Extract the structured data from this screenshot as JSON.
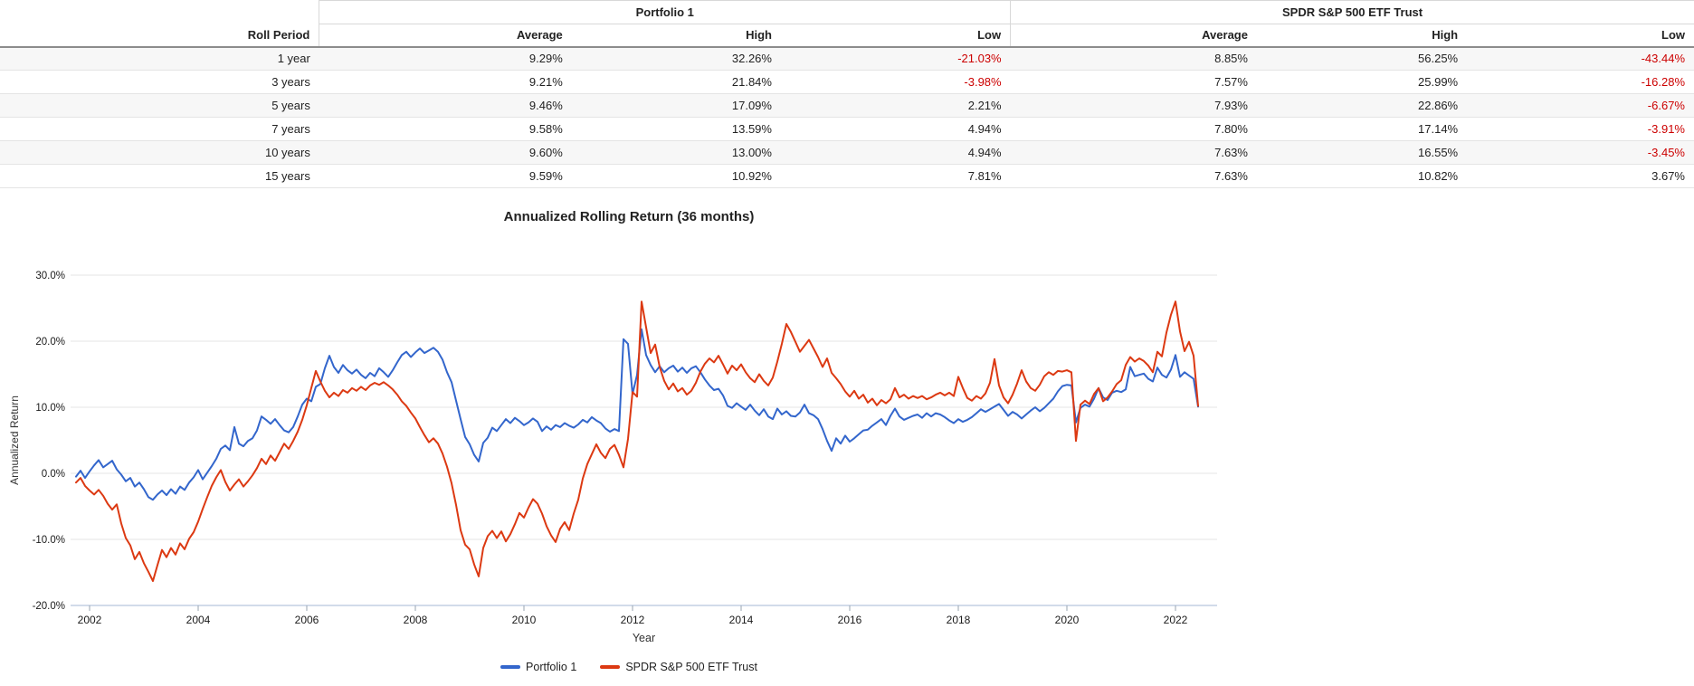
{
  "colors": {
    "portfolio1": "#3366cc",
    "benchmark": "#dc3912",
    "negative": "#cc0000"
  },
  "table": {
    "row_header": "Roll Period",
    "groups": [
      {
        "label": "Portfolio 1"
      },
      {
        "label": "SPDR S&P 500 ETF Trust"
      }
    ],
    "sub_headers": [
      "Average",
      "High",
      "Low",
      "Average",
      "High",
      "Low"
    ],
    "rows": [
      {
        "cells": [
          "1 year",
          "9.29%",
          "32.26%",
          "-21.03%",
          "8.85%",
          "56.25%",
          "-43.44%"
        ]
      },
      {
        "cells": [
          "3 years",
          "9.21%",
          "21.84%",
          "-3.98%",
          "7.57%",
          "25.99%",
          "-16.28%"
        ]
      },
      {
        "cells": [
          "5 years",
          "9.46%",
          "17.09%",
          "2.21%",
          "7.93%",
          "22.86%",
          "-6.67%"
        ]
      },
      {
        "cells": [
          "7 years",
          "9.58%",
          "13.59%",
          "4.94%",
          "7.80%",
          "17.14%",
          "-3.91%"
        ]
      },
      {
        "cells": [
          "10 years",
          "9.60%",
          "13.00%",
          "4.94%",
          "7.63%",
          "16.55%",
          "-3.45%"
        ]
      },
      {
        "cells": [
          "15 years",
          "9.59%",
          "10.92%",
          "7.81%",
          "7.63%",
          "10.82%",
          "3.67%"
        ]
      }
    ]
  },
  "chart_data": {
    "type": "line",
    "title": "Annualized Rolling Return (36 months)",
    "xlabel": "Year",
    "ylabel": "Annualized Return",
    "grid": true,
    "legend_position": "bottom",
    "xlim": [
      2001.7,
      2022.8
    ],
    "ylim": [
      -20,
      30
    ],
    "xticks": [
      2002,
      2004,
      2006,
      2008,
      2010,
      2012,
      2014,
      2016,
      2018,
      2020,
      2022
    ],
    "yticks": [
      30,
      20,
      10,
      0,
      -10,
      -20
    ],
    "ytick_labels": [
      "30.0%",
      "20.0%",
      "10.0%",
      "0.0%",
      "-10.0%",
      "-20.0%"
    ],
    "x_start": 2001.75,
    "x_step": 0.0833333,
    "series": [
      {
        "name": "Portfolio 1",
        "color": "#3366cc",
        "values": [
          -0.5,
          0.4,
          -0.7,
          0.3,
          1.2,
          2.0,
          0.9,
          1.4,
          1.9,
          0.6,
          -0.2,
          -1.2,
          -0.7,
          -2.0,
          -1.4,
          -2.4,
          -3.6,
          -4.0,
          -3.2,
          -2.6,
          -3.3,
          -2.4,
          -3.1,
          -2.0,
          -2.5,
          -1.4,
          -0.6,
          0.5,
          -0.9,
          0.1,
          1.1,
          2.2,
          3.7,
          4.2,
          3.5,
          7.0,
          4.5,
          4.1,
          4.9,
          5.3,
          6.5,
          8.6,
          8.1,
          7.5,
          8.2,
          7.3,
          6.5,
          6.2,
          7.0,
          8.6,
          10.4,
          11.3,
          10.9,
          13.1,
          13.5,
          15.9,
          17.8,
          16.1,
          15.2,
          16.4,
          15.6,
          15.1,
          15.7,
          14.9,
          14.4,
          15.2,
          14.7,
          15.9,
          15.3,
          14.6,
          15.6,
          16.8,
          17.9,
          18.4,
          17.6,
          18.3,
          18.9,
          18.2,
          18.6,
          19.0,
          18.4,
          17.2,
          15.3,
          13.8,
          11.0,
          8.2,
          5.5,
          4.4,
          2.8,
          1.8,
          4.6,
          5.4,
          6.9,
          6.4,
          7.3,
          8.2,
          7.6,
          8.4,
          7.9,
          7.3,
          7.7,
          8.3,
          7.8,
          6.4,
          7.1,
          6.6,
          7.3,
          7.0,
          7.6,
          7.2,
          6.9,
          7.4,
          8.1,
          7.7,
          8.5,
          8.0,
          7.6,
          6.8,
          6.3,
          6.7,
          6.4,
          20.3,
          19.6,
          12.0,
          14.9,
          21.8,
          17.9,
          16.4,
          15.3,
          16.2,
          15.3,
          15.9,
          16.3,
          15.4,
          16.0,
          15.2,
          15.9,
          16.2,
          15.3,
          14.2,
          13.3,
          12.6,
          12.8,
          11.8,
          10.2,
          9.9,
          10.6,
          10.1,
          9.6,
          10.4,
          9.5,
          8.8,
          9.7,
          8.6,
          8.2,
          9.8,
          8.9,
          9.4,
          8.7,
          8.6,
          9.2,
          10.4,
          9.1,
          8.8,
          8.2,
          6.7,
          4.9,
          3.4,
          5.3,
          4.5,
          5.7,
          4.8,
          5.3,
          5.9,
          6.5,
          6.6,
          7.2,
          7.7,
          8.2,
          7.3,
          8.7,
          9.8,
          8.6,
          8.1,
          8.4,
          8.7,
          8.9,
          8.4,
          9.1,
          8.6,
          9.1,
          8.9,
          8.5,
          8.0,
          7.6,
          8.2,
          7.8,
          8.1,
          8.5,
          9.1,
          9.7,
          9.3,
          9.7,
          10.1,
          10.5,
          9.6,
          8.7,
          9.3,
          8.9,
          8.3,
          8.9,
          9.5,
          10.0,
          9.4,
          9.9,
          10.6,
          11.3,
          12.4,
          13.2,
          13.4,
          13.3,
          7.7,
          9.9,
          10.4,
          10.1,
          11.3,
          12.9,
          11.5,
          11.1,
          12.2,
          12.5,
          12.3,
          12.7,
          16.1,
          14.7,
          14.9,
          15.1,
          14.3,
          13.9,
          16.0,
          14.9,
          14.5,
          15.7,
          17.9,
          14.6,
          15.3,
          14.8,
          14.3,
          10.1
        ]
      },
      {
        "name": "SPDR S&P 500 ETF Trust",
        "color": "#dc3912",
        "values": [
          -1.4,
          -0.7,
          -1.9,
          -2.6,
          -3.2,
          -2.5,
          -3.4,
          -4.6,
          -5.5,
          -4.7,
          -7.6,
          -9.8,
          -10.9,
          -13.0,
          -11.9,
          -13.6,
          -14.9,
          -16.3,
          -13.9,
          -11.6,
          -12.7,
          -11.3,
          -12.3,
          -10.6,
          -11.5,
          -9.9,
          -8.9,
          -7.3,
          -5.4,
          -3.6,
          -1.9,
          -0.6,
          0.5,
          -1.3,
          -2.6,
          -1.7,
          -0.9,
          -2.0,
          -1.2,
          -0.3,
          0.8,
          2.2,
          1.4,
          2.7,
          1.9,
          3.2,
          4.5,
          3.7,
          4.9,
          6.3,
          8.1,
          10.3,
          12.9,
          15.5,
          13.9,
          12.5,
          11.5,
          12.2,
          11.7,
          12.6,
          12.2,
          12.9,
          12.5,
          13.1,
          12.6,
          13.3,
          13.7,
          13.4,
          13.8,
          13.3,
          12.7,
          11.9,
          10.9,
          10.2,
          9.2,
          8.3,
          7.0,
          5.8,
          4.7,
          5.3,
          4.5,
          3.0,
          1.0,
          -1.5,
          -4.8,
          -8.6,
          -10.8,
          -11.5,
          -13.8,
          -15.6,
          -11.3,
          -9.5,
          -8.7,
          -9.8,
          -8.8,
          -10.3,
          -9.2,
          -7.7,
          -6.0,
          -6.7,
          -5.2,
          -3.9,
          -4.6,
          -6.1,
          -8.0,
          -9.4,
          -10.4,
          -8.4,
          -7.4,
          -8.6,
          -6.1,
          -4.0,
          -0.8,
          1.4,
          2.9,
          4.4,
          3.1,
          2.3,
          3.7,
          4.3,
          2.8,
          0.9,
          5.2,
          12.3,
          11.6,
          26.0,
          22.1,
          18.2,
          19.5,
          16.1,
          14.0,
          12.7,
          13.6,
          12.4,
          12.9,
          11.9,
          12.5,
          13.7,
          15.4,
          16.6,
          17.4,
          16.8,
          17.8,
          16.5,
          15.1,
          16.3,
          15.6,
          16.5,
          15.3,
          14.4,
          13.8,
          15.0,
          14.0,
          13.3,
          14.5,
          16.9,
          19.6,
          22.6,
          21.4,
          19.9,
          18.4,
          19.3,
          20.2,
          18.9,
          17.6,
          16.1,
          17.4,
          15.2,
          14.4,
          13.5,
          12.4,
          11.6,
          12.5,
          11.3,
          11.9,
          10.7,
          11.3,
          10.3,
          11.1,
          10.6,
          11.2,
          12.9,
          11.5,
          11.9,
          11.3,
          11.7,
          11.4,
          11.7,
          11.2,
          11.5,
          11.9,
          12.2,
          11.8,
          12.2,
          11.7,
          14.6,
          12.9,
          11.4,
          11.0,
          11.7,
          11.3,
          12.1,
          13.7,
          17.3,
          13.3,
          11.5,
          10.6,
          11.9,
          13.6,
          15.6,
          13.9,
          12.9,
          12.5,
          13.4,
          14.7,
          15.3,
          14.9,
          15.5,
          15.4,
          15.6,
          15.3,
          4.9,
          10.4,
          11.0,
          10.5,
          12.0,
          12.9,
          10.9,
          11.5,
          12.4,
          13.5,
          14.1,
          16.4,
          17.6,
          16.9,
          17.4,
          17.0,
          16.3,
          15.3,
          18.4,
          17.7,
          21.3,
          24.0,
          26.0,
          21.5,
          18.5,
          19.9,
          17.8,
          10.2
        ]
      }
    ]
  }
}
